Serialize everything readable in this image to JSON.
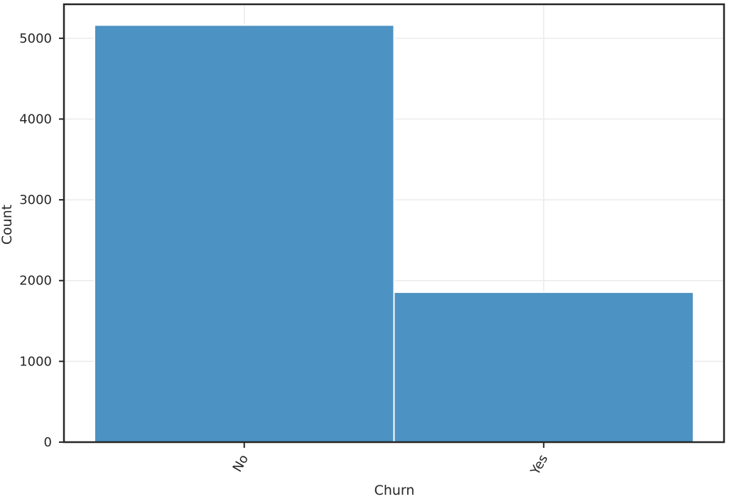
{
  "chart_data": {
    "type": "bar",
    "title": "",
    "xlabel": "Churn",
    "ylabel": "Count",
    "categories": [
      "No",
      "Yes"
    ],
    "values": [
      5163,
      1856
    ],
    "ylim": [
      0,
      5421
    ],
    "yticks": [
      0,
      1000,
      2000,
      3000,
      4000,
      5000
    ],
    "grid": true,
    "legend": "none",
    "bar_color": "#4c92c3",
    "grid_color": "#ebebeb",
    "axis_color": "#262626"
  }
}
